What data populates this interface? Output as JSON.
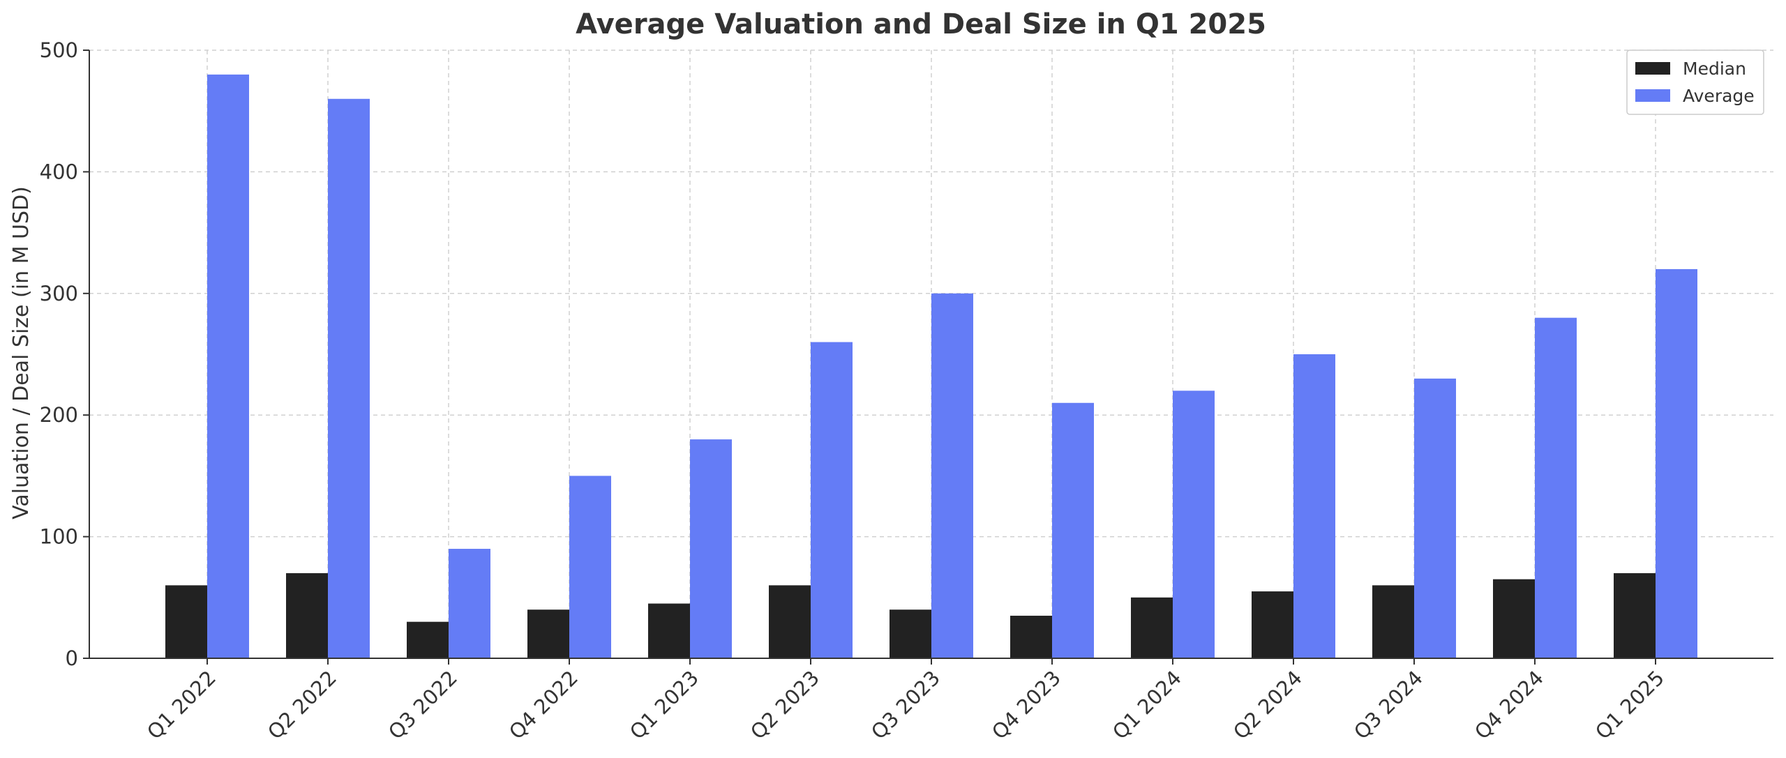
{
  "chart_data": {
    "type": "bar",
    "title": "Average Valuation and Deal Size in Q1 2025",
    "xlabel": "",
    "ylabel": "Valuation / Deal Size (in M USD)",
    "ylim": [
      0,
      500
    ],
    "yticks": [
      0,
      100,
      200,
      300,
      400,
      500
    ],
    "grid": true,
    "legend_position": "top-right",
    "categories": [
      "Q1 2022",
      "Q2 2022",
      "Q3 2022",
      "Q4 2022",
      "Q1 2023",
      "Q2 2023",
      "Q3 2023",
      "Q4 2023",
      "Q1 2024",
      "Q2 2024",
      "Q3 2024",
      "Q4 2024",
      "Q1 2025"
    ],
    "series": [
      {
        "name": "Median",
        "color": "#222222",
        "values": [
          60,
          70,
          30,
          40,
          45,
          60,
          40,
          35,
          50,
          55,
          60,
          65,
          70
        ]
      },
      {
        "name": "Average",
        "color": "#647cf6",
        "values": [
          480,
          460,
          90,
          150,
          180,
          260,
          300,
          210,
          220,
          250,
          230,
          280,
          320
        ]
      }
    ]
  }
}
